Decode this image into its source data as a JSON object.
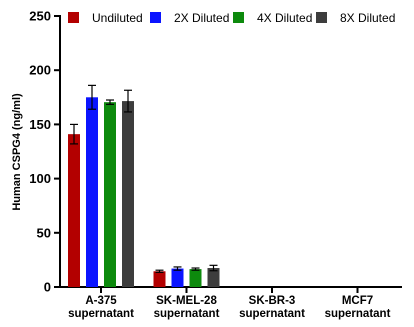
{
  "chart_data": {
    "type": "bar",
    "categories": [
      "A-375 supernatant",
      "SK-MEL-28 supernatant",
      "SK-BR-3 supernatant",
      "MCF7 supernatant"
    ],
    "category_lines": [
      [
        "A-375",
        "supernatant"
      ],
      [
        "SK-MEL-28",
        "supernatant"
      ],
      [
        "SK-BR-3",
        "supernatant"
      ],
      [
        "MCF7",
        "supernatant"
      ]
    ],
    "series": [
      {
        "name": "Undiluted",
        "color": "#b30000",
        "values": [
          141,
          14.5,
          0,
          0
        ],
        "errors": [
          9,
          1,
          0,
          0
        ]
      },
      {
        "name": "2X Diluted",
        "color": "#0a14ff",
        "values": [
          175,
          17,
          0,
          0
        ],
        "errors": [
          11,
          1.5,
          0,
          0
        ]
      },
      {
        "name": "4X Diluted",
        "color": "#0d8a0d",
        "values": [
          170.5,
          16.5,
          0,
          0
        ],
        "errors": [
          2,
          1,
          0,
          0
        ]
      },
      {
        "name": "8X Diluted",
        "color": "#3d3d3d",
        "values": [
          171.5,
          17.5,
          0,
          0
        ],
        "errors": [
          10,
          2.5,
          0,
          0
        ]
      }
    ],
    "ylabel": "Human CSPG4 (ng/ml)",
    "xlabel": "",
    "ylim": [
      0,
      250
    ],
    "yticks": [
      0,
      50,
      100,
      150,
      200,
      250
    ],
    "grid": false,
    "legend_position": "top"
  }
}
